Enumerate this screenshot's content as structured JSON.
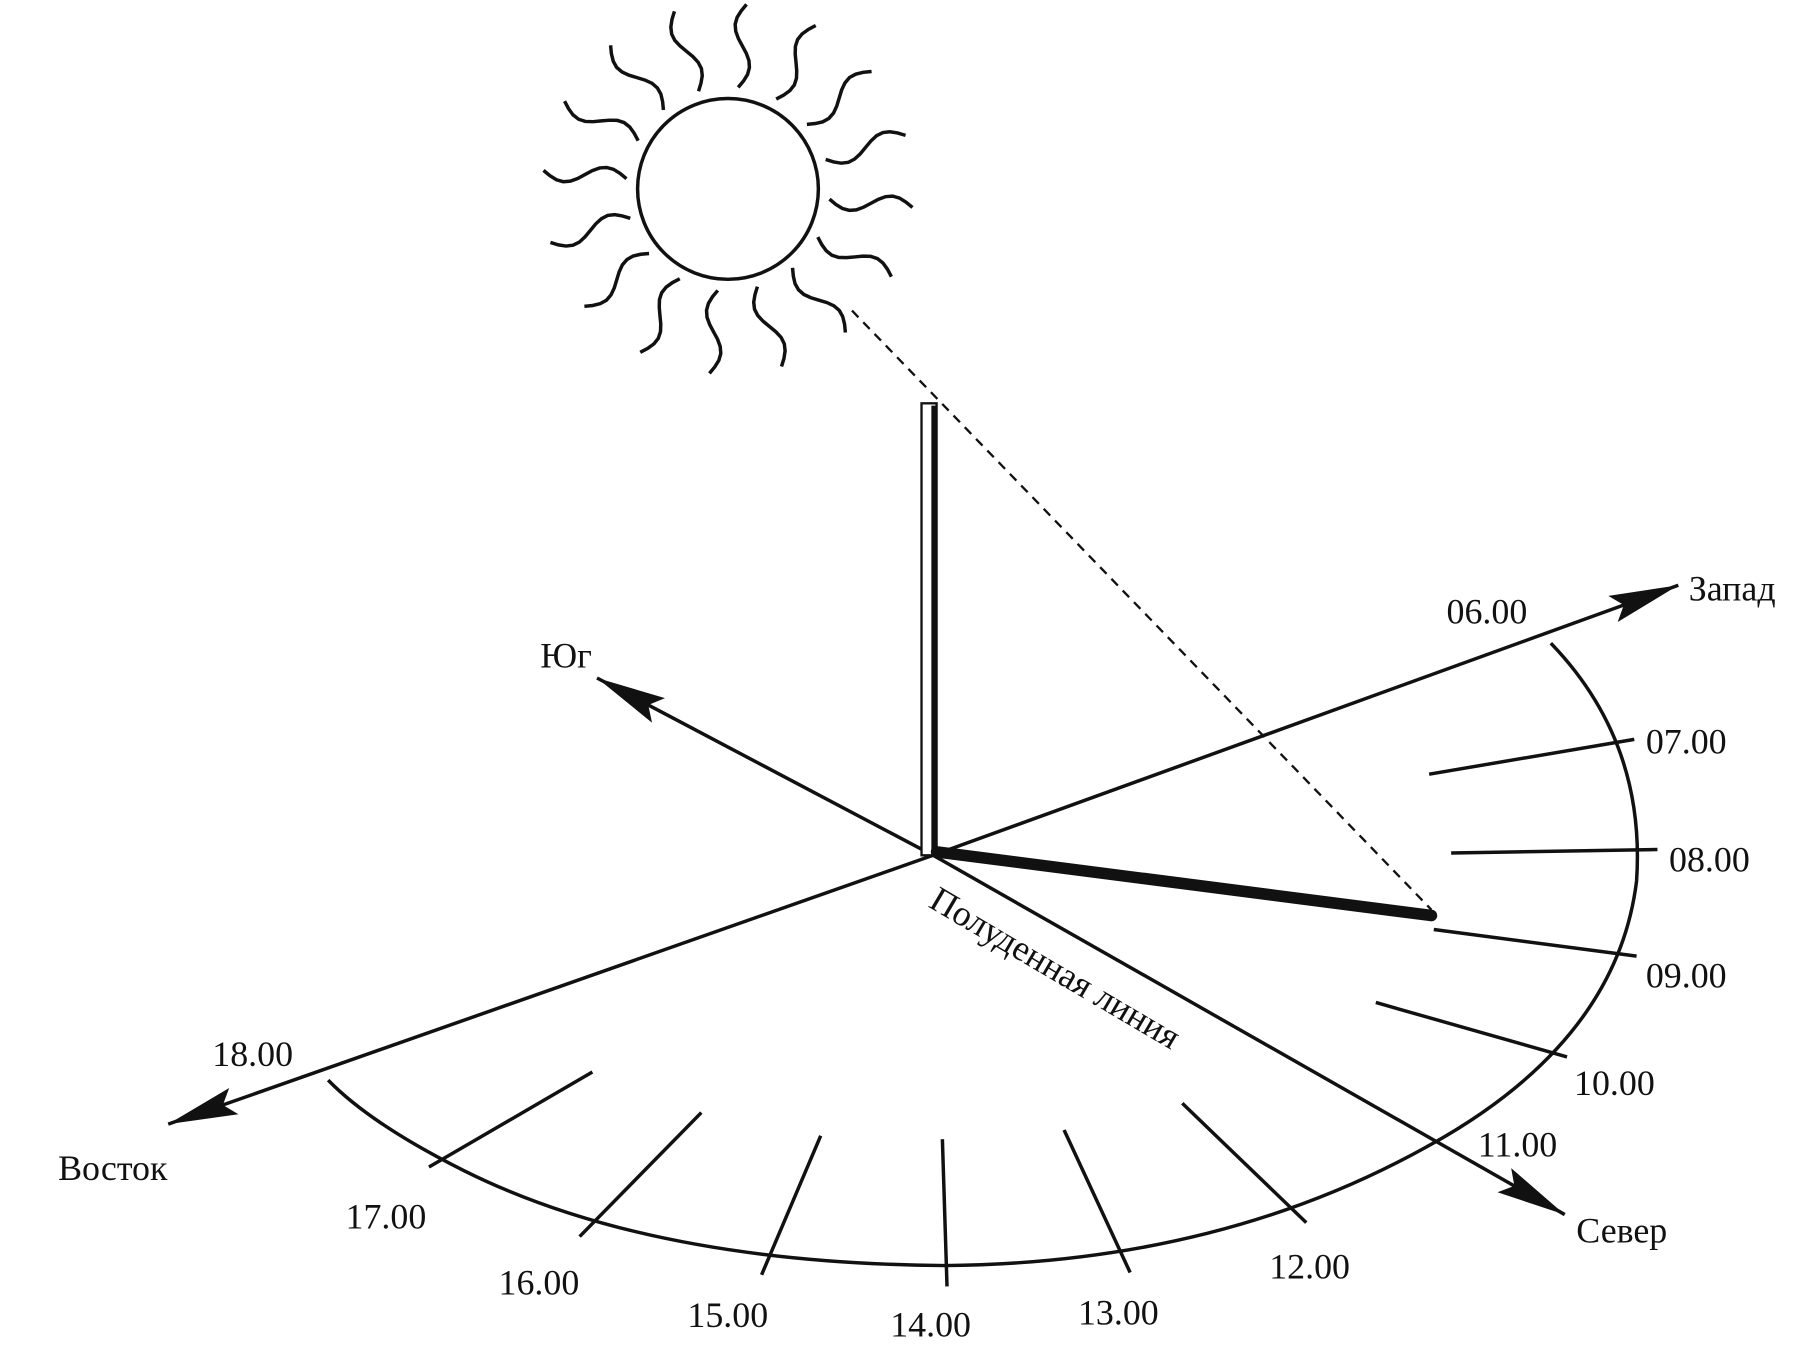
{
  "directions": {
    "west": "Запад",
    "south": "Юг",
    "east": "Восток",
    "north": "Север"
  },
  "noon_line": "Полуденная линия",
  "hours": [
    "06.00",
    "07.00",
    "08.00",
    "09.00",
    "10.00",
    "11.00",
    "12.00",
    "13.00",
    "14.00",
    "15.00",
    "16.00",
    "17.00",
    "18.00"
  ]
}
